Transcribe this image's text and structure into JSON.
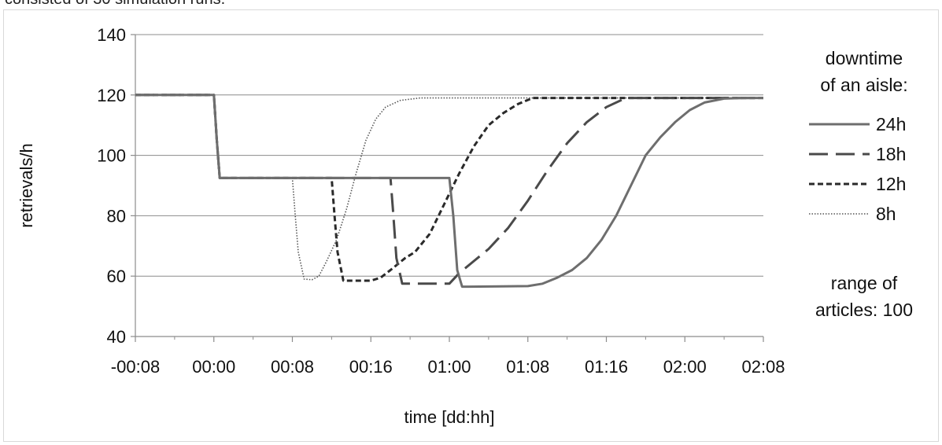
{
  "header": {
    "text": "consisted of 30 simulation runs."
  },
  "chart_data": {
    "type": "line",
    "xlabel": "time [dd:hh]",
    "ylabel": "retrievals/h",
    "x_tick_labels": [
      "-00:08",
      "00:00",
      "00:08",
      "00:16",
      "01:00",
      "01:08",
      "01:16",
      "02:00",
      "02:08"
    ],
    "y_ticks": [
      40,
      60,
      80,
      100,
      120,
      140
    ],
    "ylim": [
      40,
      140
    ],
    "xlim_hours": [
      -8,
      56
    ],
    "grid": true,
    "legend": {
      "title_lines": [
        "downtime",
        "of an aisle:"
      ],
      "footer_lines": [
        "range of",
        "articles: 100"
      ],
      "placement": "right"
    },
    "series": [
      {
        "name": "24h",
        "style": "solid",
        "color": "#6e6e6e",
        "points": [
          [
            -8,
            120
          ],
          [
            0,
            120
          ],
          [
            0.3,
            105
          ],
          [
            0.6,
            92.5
          ],
          [
            24,
            92.5
          ],
          [
            24.4,
            80
          ],
          [
            24.8,
            62
          ],
          [
            25.3,
            56.5
          ],
          [
            26,
            56.5
          ],
          [
            32,
            56.7
          ],
          [
            33.5,
            57.5
          ],
          [
            35,
            59.5
          ],
          [
            36.5,
            62
          ],
          [
            38,
            66
          ],
          [
            39.5,
            72
          ],
          [
            41,
            80
          ],
          [
            42.5,
            90
          ],
          [
            44,
            100
          ],
          [
            45.5,
            106
          ],
          [
            47,
            111
          ],
          [
            48.5,
            115
          ],
          [
            50,
            117.5
          ],
          [
            52,
            118.8
          ],
          [
            54,
            119
          ],
          [
            56,
            119
          ]
        ]
      },
      {
        "name": "18h",
        "style": "longdash",
        "color": "#4a4a4a",
        "points": [
          [
            -8,
            120
          ],
          [
            0,
            120
          ],
          [
            0.3,
            105
          ],
          [
            0.6,
            92.5
          ],
          [
            18,
            92.5
          ],
          [
            18.3,
            80
          ],
          [
            18.6,
            66
          ],
          [
            19.2,
            57.5
          ],
          [
            24,
            57.5
          ],
          [
            25,
            61
          ],
          [
            26.5,
            65
          ],
          [
            28,
            69
          ],
          [
            30,
            76
          ],
          [
            32,
            85
          ],
          [
            34,
            95
          ],
          [
            36,
            104
          ],
          [
            38,
            111
          ],
          [
            40,
            116
          ],
          [
            42,
            119
          ],
          [
            56,
            119
          ]
        ]
      },
      {
        "name": "12h",
        "style": "dash",
        "color": "#2a2a2a",
        "points": [
          [
            -8,
            120
          ],
          [
            0,
            120
          ],
          [
            0.3,
            105
          ],
          [
            0.6,
            92.5
          ],
          [
            12,
            92.5
          ],
          [
            12.3,
            80
          ],
          [
            12.6,
            68
          ],
          [
            13.2,
            58.5
          ],
          [
            16,
            58.5
          ],
          [
            17,
            59.5
          ],
          [
            18,
            62
          ],
          [
            19.5,
            66
          ],
          [
            20.5,
            68
          ],
          [
            22,
            74
          ],
          [
            23.5,
            84
          ],
          [
            25,
            94
          ],
          [
            26.5,
            103
          ],
          [
            28,
            110
          ],
          [
            29.5,
            114
          ],
          [
            31,
            117
          ],
          [
            32.5,
            119
          ],
          [
            56,
            119
          ]
        ]
      },
      {
        "name": "8h",
        "style": "dot",
        "color": "#555555",
        "points": [
          [
            -8,
            120
          ],
          [
            0,
            120
          ],
          [
            0.3,
            105
          ],
          [
            0.6,
            92.5
          ],
          [
            8,
            92.5
          ],
          [
            8.3,
            80
          ],
          [
            8.6,
            68
          ],
          [
            9.2,
            59
          ],
          [
            10,
            58.8
          ],
          [
            10.7,
            60
          ],
          [
            11.5,
            65
          ],
          [
            12.5,
            72
          ],
          [
            13.5,
            82
          ],
          [
            14.5,
            94
          ],
          [
            15.5,
            105
          ],
          [
            16.5,
            112
          ],
          [
            17.5,
            116
          ],
          [
            19,
            118.2
          ],
          [
            21,
            119
          ],
          [
            56,
            119
          ]
        ]
      }
    ]
  }
}
